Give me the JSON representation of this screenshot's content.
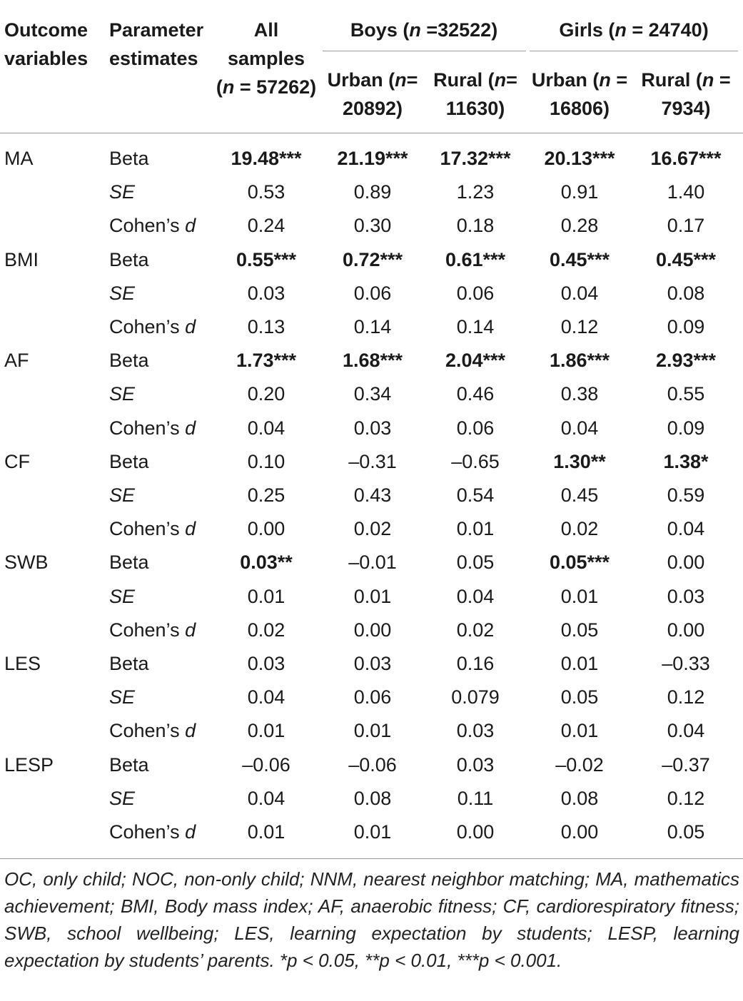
{
  "header": {
    "col1": [
      "Outcome",
      "variables"
    ],
    "col2": [
      "Parameter",
      "estimates"
    ],
    "col3": [
      "All",
      "samples",
      "(n = 57262)"
    ],
    "boys_group": "Boys (n =32522)",
    "girls_group": "Girls (n = 24740)",
    "boys_urban": [
      "Urban (n=",
      "20892)"
    ],
    "boys_rural": [
      "Rural (n=",
      "11630)"
    ],
    "girls_urban": [
      "Urban (n =",
      "16806)"
    ],
    "girls_rural": [
      "Rural (n =",
      "7934)"
    ]
  },
  "rows": [
    {
      "outcome": "MA",
      "stat": "Beta",
      "values": [
        "19.48***",
        "21.19***",
        "17.32***",
        "20.13***",
        "16.67***"
      ],
      "bold": [
        true,
        true,
        true,
        true,
        true
      ]
    },
    {
      "outcome": "",
      "stat": "SE",
      "values": [
        "0.53",
        "0.89",
        "1.23",
        "0.91",
        "1.40"
      ],
      "bold": [
        false,
        false,
        false,
        false,
        false
      ]
    },
    {
      "outcome": "",
      "stat": "Cohen’s d",
      "values": [
        "0.24",
        "0.30",
        "0.18",
        "0.28",
        "0.17"
      ],
      "bold": [
        false,
        false,
        false,
        false,
        false
      ]
    },
    {
      "outcome": "BMI",
      "stat": "Beta",
      "values": [
        "0.55***",
        "0.72***",
        "0.61***",
        "0.45***",
        "0.45***"
      ],
      "bold": [
        true,
        true,
        true,
        true,
        true
      ]
    },
    {
      "outcome": "",
      "stat": "SE",
      "values": [
        "0.03",
        "0.06",
        "0.06",
        "0.04",
        "0.08"
      ],
      "bold": [
        false,
        false,
        false,
        false,
        false
      ]
    },
    {
      "outcome": "",
      "stat": "Cohen’s d",
      "values": [
        "0.13",
        "0.14",
        "0.14",
        "0.12",
        "0.09"
      ],
      "bold": [
        false,
        false,
        false,
        false,
        false
      ]
    },
    {
      "outcome": "AF",
      "stat": "Beta",
      "values": [
        "1.73***",
        "1.68***",
        "2.04***",
        "1.86***",
        "2.93***"
      ],
      "bold": [
        true,
        true,
        true,
        true,
        true
      ]
    },
    {
      "outcome": "",
      "stat": "SE",
      "values": [
        "0.20",
        "0.34",
        "0.46",
        "0.38",
        "0.55"
      ],
      "bold": [
        false,
        false,
        false,
        false,
        false
      ]
    },
    {
      "outcome": "",
      "stat": "Cohen’s d",
      "values": [
        "0.04",
        "0.03",
        "0.06",
        "0.04",
        "0.09"
      ],
      "bold": [
        false,
        false,
        false,
        false,
        false
      ]
    },
    {
      "outcome": "CF",
      "stat": "Beta",
      "values": [
        "0.10",
        "–0.31",
        "–0.65",
        "1.30**",
        "1.38*"
      ],
      "bold": [
        false,
        false,
        false,
        true,
        true
      ]
    },
    {
      "outcome": "",
      "stat": "SE",
      "values": [
        "0.25",
        "0.43",
        "0.54",
        "0.45",
        "0.59"
      ],
      "bold": [
        false,
        false,
        false,
        false,
        false
      ]
    },
    {
      "outcome": "",
      "stat": "Cohen’s d",
      "values": [
        "0.00",
        "0.02",
        "0.01",
        "0.02",
        "0.04"
      ],
      "bold": [
        false,
        false,
        false,
        false,
        false
      ]
    },
    {
      "outcome": "SWB",
      "stat": "Beta",
      "values": [
        "0.03**",
        "–0.01",
        "0.05",
        "0.05***",
        "0.00"
      ],
      "bold": [
        true,
        false,
        false,
        true,
        false
      ]
    },
    {
      "outcome": "",
      "stat": "SE",
      "values": [
        "0.01",
        "0.01",
        "0.04",
        "0.01",
        "0.03"
      ],
      "bold": [
        false,
        false,
        false,
        false,
        false
      ]
    },
    {
      "outcome": "",
      "stat": "Cohen’s d",
      "values": [
        "0.02",
        "0.00",
        "0.02",
        "0.05",
        "0.00"
      ],
      "bold": [
        false,
        false,
        false,
        false,
        false
      ]
    },
    {
      "outcome": "LES",
      "stat": "Beta",
      "values": [
        "0.03",
        "0.03",
        "0.16",
        "0.01",
        "–0.33"
      ],
      "bold": [
        false,
        false,
        false,
        false,
        false
      ]
    },
    {
      "outcome": "",
      "stat": "SE",
      "values": [
        "0.04",
        "0.06",
        "0.079",
        "0.05",
        "0.12"
      ],
      "bold": [
        false,
        false,
        false,
        false,
        false
      ]
    },
    {
      "outcome": "",
      "stat": "Cohen’s d",
      "values": [
        "0.01",
        "0.01",
        "0.03",
        "0.01",
        "0.04"
      ],
      "bold": [
        false,
        false,
        false,
        false,
        false
      ]
    },
    {
      "outcome": "LESP",
      "stat": "Beta",
      "values": [
        "–0.06",
        "–0.06",
        "0.03",
        "–0.02",
        "–0.37"
      ],
      "bold": [
        false,
        false,
        false,
        false,
        false
      ]
    },
    {
      "outcome": "",
      "stat": "SE",
      "values": [
        "0.04",
        "0.08",
        "0.11",
        "0.08",
        "0.12"
      ],
      "bold": [
        false,
        false,
        false,
        false,
        false
      ]
    },
    {
      "outcome": "",
      "stat": "Cohen’s d",
      "values": [
        "0.01",
        "0.01",
        "0.00",
        "0.00",
        "0.05"
      ],
      "bold": [
        false,
        false,
        false,
        false,
        false
      ]
    }
  ],
  "footnote": "OC, only child; NOC, non-only child; NNM, nearest neighbor matching; MA, mathematics achievement; BMI, Body mass index; AF, anaerobic fitness; CF, cardiorespiratory fitness; SWB, school wellbeing; LES, learning expectation by students; LESP, learning expectation by students’ parents. *p < 0.05, **p < 0.01, ***p < 0.001."
}
